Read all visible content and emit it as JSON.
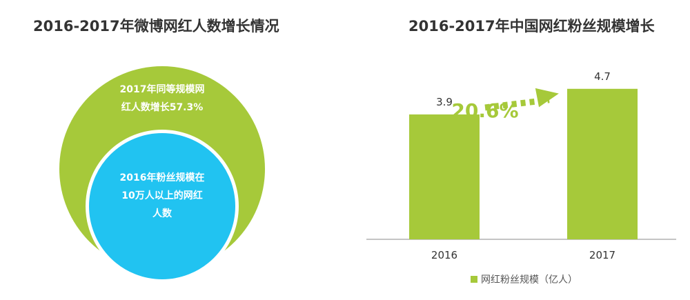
{
  "left_panel": {
    "title": "2016-2017年微博网红人数增长情况",
    "outer_circle_label": [
      "2017年同等规模网",
      "红人数增长57.3%"
    ],
    "inner_circle_label": [
      "2016年粉丝规模在",
      "10万人以上的网红",
      "人数"
    ],
    "colors": {
      "outer_circle": "#a6c93a",
      "inner_circle": "#21c3f1"
    }
  },
  "right_panel": {
    "title": "2016-2017年中国网红粉丝规模增长"
  },
  "chart_data": {
    "type": "bar",
    "title": "2016-2017年中国网红粉丝规模增长",
    "categories": [
      "2016",
      "2017"
    ],
    "series": [
      {
        "name": "网红粉丝规模（亿人）",
        "values": [
          3.9,
          4.7
        ]
      }
    ],
    "data_labels": [
      "3.9",
      "4.7"
    ],
    "growth_annotation": "20.6%",
    "ylim": [
      0,
      5.6
    ],
    "grid": false,
    "legend_position": "bottom",
    "colors": {
      "bar": "#a6c93a",
      "annotation": "#a6c93a",
      "axis": "#888888",
      "text": "#333333"
    }
  }
}
